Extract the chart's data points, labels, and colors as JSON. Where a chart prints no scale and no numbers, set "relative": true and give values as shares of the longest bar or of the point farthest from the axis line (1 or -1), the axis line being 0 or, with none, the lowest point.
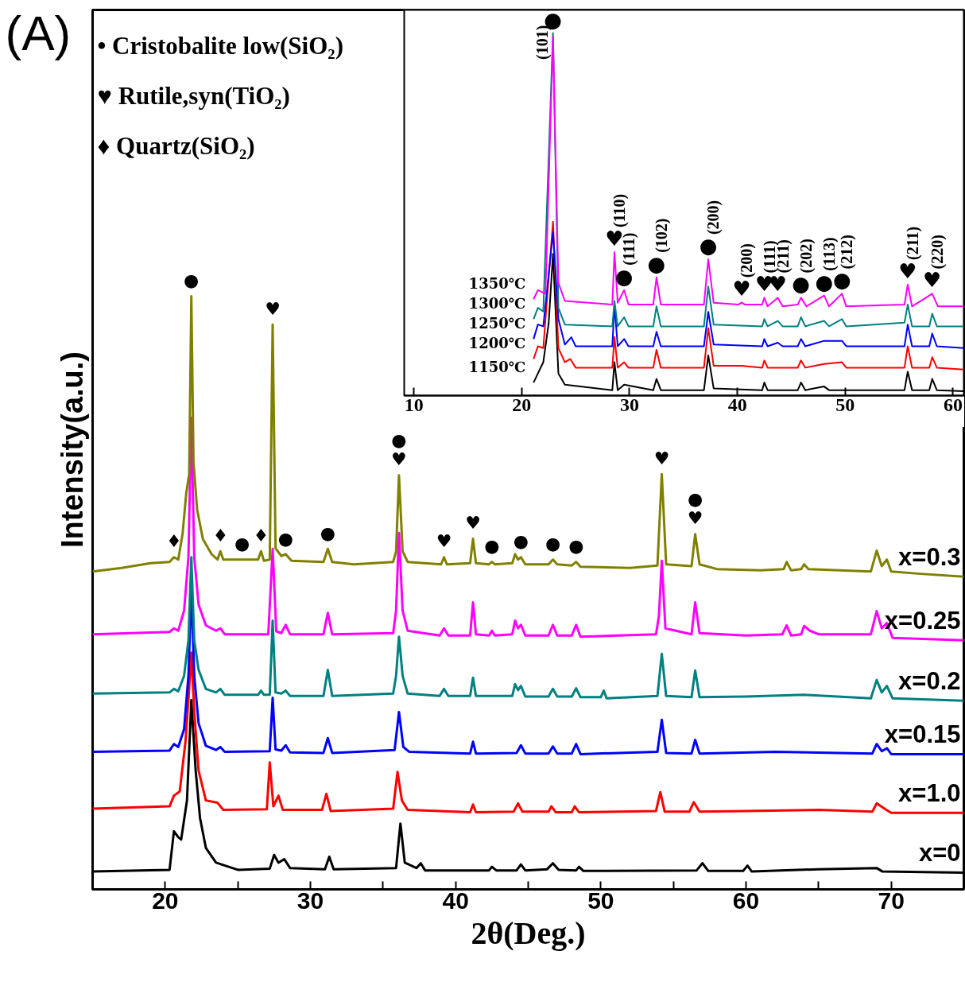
{
  "chart_data": [
    {
      "type": "line",
      "title": "(A)",
      "xlabel": "2θ(Deg.)",
      "ylabel": "Intensity(a.u.)",
      "relative": true,
      "xlim": [
        15,
        75
      ],
      "xticks": [
        20,
        {
          "value": 25,
          "label": null
        },
        30,
        {
          "value": 35,
          "label": null
        },
        40,
        {
          "value": 45,
          "label": null
        },
        50,
        {
          "value": 55,
          "label": null
        },
        60,
        {
          "value": 65,
          "label": null
        },
        70
      ],
      "annotations": [
        "• Cristobalite low(SiO₂)",
        "♥ Rutile,syn(TiO₂)",
        "♦ Quartz(SiO₂)",
        {
          "text": "●",
          "x": 21.8,
          "y": 1.0
        },
        {
          "text": "♥",
          "x": 27.4,
          "y": 0.952
        },
        {
          "text": "♦",
          "x": 20.6,
          "y": 0.56
        },
        {
          "text": "♦",
          "x": 23.8,
          "y": 0.57
        },
        {
          "text": "●",
          "x": 25.3,
          "y": 0.556
        },
        {
          "text": "♦",
          "x": 26.6,
          "y": 0.57
        },
        {
          "text": "●",
          "x": 28.3,
          "y": 0.565
        },
        {
          "text": "●",
          "x": 31.2,
          "y": 0.574
        },
        {
          "text": "♥",
          "x": 36.1,
          "y": 0.698
        },
        {
          "text": "●",
          "x": 36.1,
          "y": 0.698
        },
        {
          "text": "♥",
          "x": 39.2,
          "y": 0.56
        },
        {
          "text": "♥",
          "x": 41.2,
          "y": 0.591
        },
        {
          "text": "●",
          "x": 42.5,
          "y": 0.552
        },
        {
          "text": "●",
          "x": 44.5,
          "y": 0.56
        },
        {
          "text": "●",
          "x": 46.7,
          "y": 0.556
        },
        {
          "text": "●",
          "x": 48.3,
          "y": 0.552
        },
        {
          "text": "♥",
          "x": 54.2,
          "y": 0.7
        },
        {
          "text": "♥",
          "x": 56.5,
          "y": 0.599
        },
        {
          "text": "●",
          "x": 56.5,
          "y": 0.599
        }
      ],
      "series": [
        {
          "name": "x=0",
          "color": "#000000",
          "x": [
            15,
            20.3,
            20.6,
            20.9,
            21.1,
            21.5,
            21.8,
            22.1,
            22.4,
            22.8,
            23.5,
            25,
            27.2,
            27.5,
            27.8,
            28.2,
            28.6,
            31.0,
            31.3,
            31.6,
            35.9,
            36.2,
            36.5,
            37.3,
            37.6,
            37.9,
            42.3,
            42.5,
            42.8,
            44.2,
            44.5,
            44.8,
            46.3,
            46.7,
            47.1,
            48.3,
            48.5,
            48.8,
            56.6,
            57,
            57.4,
            59.8,
            60.1,
            60.4,
            65,
            69,
            69.4,
            75
          ],
          "values": [
            0.03,
            0.033,
            0.098,
            0.088,
            0.084,
            0.15,
            0.319,
            0.2,
            0.12,
            0.07,
            0.045,
            0.033,
            0.035,
            0.058,
            0.045,
            0.051,
            0.036,
            0.034,
            0.055,
            0.034,
            0.036,
            0.111,
            0.045,
            0.036,
            0.044,
            0.032,
            0.032,
            0.038,
            0.032,
            0.032,
            0.042,
            0.032,
            0.034,
            0.044,
            0.033,
            0.032,
            0.038,
            0.031,
            0.032,
            0.044,
            0.031,
            0.031,
            0.04,
            0.03,
            0.034,
            0.036,
            0.03,
            0.028
          ]
        },
        {
          "name": "x=1.0",
          "color": "#ff0000",
          "x": [
            15,
            20.3,
            20.6,
            21.0,
            21.4,
            21.6,
            21.8,
            22.0,
            22.3,
            22.8,
            23.6,
            24.0,
            27.0,
            27.2,
            27.45,
            27.8,
            28.1,
            30.8,
            31.1,
            31.4,
            35.7,
            36.0,
            36.3,
            36.7,
            41.0,
            41.2,
            41.4,
            44.0,
            44.3,
            44.6,
            46.4,
            46.6,
            46.9,
            48.0,
            48.2,
            48.5,
            53.8,
            54.1,
            54.4,
            56.1,
            56.4,
            56.8,
            60,
            65,
            68.7,
            69,
            69.6,
            70.0,
            75
          ],
          "values": [
            0.136,
            0.14,
            0.158,
            0.165,
            0.25,
            0.32,
            0.399,
            0.3,
            0.2,
            0.15,
            0.146,
            0.134,
            0.135,
            0.214,
            0.14,
            0.158,
            0.134,
            0.134,
            0.161,
            0.132,
            0.136,
            0.198,
            0.15,
            0.134,
            0.13,
            0.143,
            0.13,
            0.131,
            0.145,
            0.131,
            0.131,
            0.14,
            0.13,
            0.13,
            0.14,
            0.13,
            0.132,
            0.164,
            0.131,
            0.131,
            0.147,
            0.131,
            0.132,
            0.134,
            0.131,
            0.145,
            0.135,
            0.129,
            0.129
          ]
        },
        {
          "name": "x=0.15",
          "color": "#0000ff",
          "x": [
            15,
            20.3,
            20.6,
            20.9,
            21.3,
            21.6,
            21.8,
            22.0,
            22.3,
            22.8,
            23.5,
            23.8,
            24.1,
            27.2,
            27.4,
            27.6,
            28.0,
            28.3,
            28.6,
            30.9,
            31.2,
            31.5,
            35.8,
            36.1,
            36.4,
            36.8,
            41.0,
            41.2,
            41.4,
            44.2,
            44.5,
            44.8,
            46.4,
            46.7,
            47.0,
            48.0,
            48.3,
            48.6,
            53.9,
            54.2,
            54.5,
            56.25,
            56.5,
            56.8,
            62,
            68.7,
            69.0,
            69.35,
            69.7,
            70.0,
            75
          ],
          "values": [
            0.232,
            0.234,
            0.245,
            0.24,
            0.27,
            0.36,
            0.507,
            0.36,
            0.28,
            0.242,
            0.235,
            0.24,
            0.232,
            0.233,
            0.323,
            0.236,
            0.234,
            0.243,
            0.231,
            0.23,
            0.255,
            0.23,
            0.235,
            0.299,
            0.24,
            0.232,
            0.229,
            0.249,
            0.229,
            0.23,
            0.243,
            0.229,
            0.229,
            0.241,
            0.229,
            0.229,
            0.245,
            0.228,
            0.232,
            0.286,
            0.23,
            0.229,
            0.252,
            0.229,
            0.232,
            0.229,
            0.245,
            0.233,
            0.238,
            0.228,
            0.228
          ]
        },
        {
          "name": "x=0.2",
          "color": "#008080",
          "x": [
            15,
            20.3,
            20.6,
            20.9,
            21.3,
            21.6,
            21.8,
            22.0,
            22.3,
            22.8,
            23.5,
            23.8,
            24.1,
            26.4,
            26.6,
            26.8,
            27.2,
            27.4,
            27.6,
            28.0,
            28.3,
            28.6,
            30.9,
            31.2,
            31.5,
            35.7,
            35.9,
            36.1,
            36.35,
            36.7,
            38.9,
            39.2,
            39.5,
            41.0,
            41.2,
            41.4,
            43.9,
            44.1,
            44.3,
            44.5,
            44.8,
            46.4,
            46.7,
            47.0,
            48.0,
            48.3,
            48.6,
            50.0,
            50.2,
            50.4,
            53.9,
            54.2,
            54.5,
            56.25,
            56.5,
            56.8,
            60,
            64,
            68.6,
            69.0,
            69.35,
            69.7,
            70.1,
            75
          ],
          "values": [
            0.33,
            0.332,
            0.338,
            0.334,
            0.36,
            0.42,
            0.56,
            0.42,
            0.37,
            0.338,
            0.332,
            0.338,
            0.328,
            0.328,
            0.335,
            0.328,
            0.328,
            0.453,
            0.332,
            0.33,
            0.335,
            0.326,
            0.326,
            0.37,
            0.326,
            0.33,
            0.36,
            0.426,
            0.36,
            0.33,
            0.326,
            0.338,
            0.326,
            0.326,
            0.357,
            0.326,
            0.326,
            0.346,
            0.336,
            0.343,
            0.325,
            0.325,
            0.338,
            0.325,
            0.325,
            0.339,
            0.324,
            0.324,
            0.335,
            0.322,
            0.326,
            0.397,
            0.326,
            0.324,
            0.369,
            0.324,
            0.325,
            0.328,
            0.322,
            0.353,
            0.332,
            0.343,
            0.322,
            0.318
          ]
        },
        {
          "name": "x=0.25",
          "color": "#ff00ff",
          "x": [
            15,
            20.3,
            20.6,
            20.9,
            21.3,
            21.6,
            21.8,
            22.0,
            22.3,
            22.8,
            23.5,
            23.8,
            24.1,
            27.1,
            27.4,
            27.65,
            28.0,
            28.3,
            28.6,
            30.9,
            31.2,
            31.5,
            35.7,
            35.9,
            36.1,
            36.35,
            36.7,
            38.9,
            39.2,
            39.5,
            41.0,
            41.2,
            41.4,
            42.3,
            42.5,
            42.7,
            43.9,
            44.1,
            44.3,
            44.5,
            44.8,
            46.4,
            46.7,
            47.0,
            48.0,
            48.3,
            48.6,
            53.8,
            54.0,
            54.2,
            54.45,
            56.25,
            56.5,
            56.8,
            60,
            62.5,
            62.8,
            63.1,
            63.8,
            64.0,
            64.4,
            65,
            68.6,
            69.0,
            69.35,
            69.7,
            70.1,
            75
          ],
          "values": [
            0.43,
            0.434,
            0.44,
            0.436,
            0.47,
            0.56,
            0.795,
            0.56,
            0.48,
            0.445,
            0.436,
            0.44,
            0.43,
            0.43,
            0.574,
            0.435,
            0.432,
            0.446,
            0.43,
            0.43,
            0.466,
            0.43,
            0.432,
            0.47,
            0.601,
            0.47,
            0.436,
            0.428,
            0.44,
            0.428,
            0.428,
            0.484,
            0.43,
            0.428,
            0.436,
            0.428,
            0.43,
            0.453,
            0.44,
            0.446,
            0.428,
            0.428,
            0.446,
            0.428,
            0.428,
            0.446,
            0.426,
            0.43,
            0.46,
            0.554,
            0.44,
            0.43,
            0.484,
            0.432,
            0.428,
            0.43,
            0.445,
            0.428,
            0.43,
            0.444,
            0.436,
            0.43,
            0.43,
            0.469,
            0.44,
            0.449,
            0.424,
            0.42
          ]
        },
        {
          "name": "x=0.3",
          "color": "#808000",
          "x": [
            15,
            17,
            19,
            20.3,
            20.6,
            20.9,
            21.2,
            21.45,
            21.65,
            21.8,
            21.95,
            22.2,
            22.6,
            23.2,
            23.6,
            23.8,
            24.0,
            25.0,
            25.3,
            26.4,
            26.6,
            26.8,
            27.2,
            27.4,
            27.6,
            28.0,
            28.3,
            28.7,
            30.9,
            31.2,
            31.5,
            33,
            35.7,
            35.9,
            36.1,
            36.35,
            36.7,
            39.0,
            39.2,
            39.4,
            41.0,
            41.2,
            41.4,
            42.3,
            42.5,
            42.7,
            43.9,
            44.1,
            44.3,
            44.5,
            44.8,
            46.4,
            46.7,
            47.0,
            48.0,
            48.3,
            48.6,
            52,
            53.9,
            54.2,
            54.5,
            56.25,
            56.5,
            56.8,
            58,
            61,
            62.6,
            62.8,
            63.1,
            63.8,
            64.0,
            64.3,
            68.6,
            69.0,
            69.35,
            69.7,
            70.0,
            72,
            75
          ],
          "values": [
            0.536,
            0.542,
            0.55,
            0.552,
            0.56,
            0.556,
            0.6,
            0.668,
            0.7,
            1.0,
            0.72,
            0.64,
            0.59,
            0.565,
            0.556,
            0.57,
            0.556,
            0.556,
            0.556,
            0.556,
            0.57,
            0.554,
            0.556,
            0.952,
            0.575,
            0.562,
            0.565,
            0.554,
            0.552,
            0.574,
            0.552,
            0.548,
            0.552,
            0.57,
            0.698,
            0.57,
            0.552,
            0.548,
            0.56,
            0.548,
            0.55,
            0.591,
            0.55,
            0.548,
            0.552,
            0.548,
            0.55,
            0.565,
            0.556,
            0.56,
            0.548,
            0.548,
            0.556,
            0.548,
            0.546,
            0.552,
            0.544,
            0.542,
            0.546,
            0.7,
            0.548,
            0.545,
            0.599,
            0.548,
            0.54,
            0.538,
            0.54,
            0.552,
            0.538,
            0.54,
            0.548,
            0.54,
            0.536,
            0.571,
            0.545,
            0.556,
            0.536,
            0.532,
            0.527
          ]
        }
      ]
    },
    {
      "type": "line",
      "relative": true,
      "xlim": [
        9.1,
        61
      ],
      "xticks": [
        10,
        20,
        30,
        40,
        50,
        60
      ],
      "annotations": [
        {
          "text": "●",
          "x": 22.9,
          "y": 1.0
        },
        {
          "text": "(101)",
          "x": 22.9,
          "y": 1.0
        },
        {
          "text": "♥",
          "x": 28.6,
          "y": 0.396
        },
        {
          "text": "(110)",
          "x": 28.6,
          "y": 0.396
        },
        {
          "text": "●",
          "x": 29.5,
          "y": 0.291
        },
        {
          "text": "(111)",
          "x": 29.5,
          "y": 0.291
        },
        {
          "text": "●",
          "x": 32.5,
          "y": 0.326
        },
        {
          "text": "(102)",
          "x": 32.5,
          "y": 0.326
        },
        {
          "text": "●",
          "x": 37.3,
          "y": 0.376
        },
        {
          "text": "(200)",
          "x": 37.3,
          "y": 0.376
        },
        {
          "text": "♥",
          "x": 40.4,
          "y": 0.257
        },
        {
          "text": "(200)",
          "x": 40.4,
          "y": 0.257
        },
        {
          "text": "♥",
          "x": 42.5,
          "y": 0.27
        },
        {
          "text": "(111)",
          "x": 42.5,
          "y": 0.27
        },
        {
          "text": "♥",
          "x": 43.75,
          "y": 0.27
        },
        {
          "text": "(211)",
          "x": 43.75,
          "y": 0.27
        },
        {
          "text": "●",
          "x": 45.9,
          "y": 0.27
        },
        {
          "text": "(202)",
          "x": 45.9,
          "y": 0.27
        },
        {
          "text": "●",
          "x": 48.05,
          "y": 0.276
        },
        {
          "text": "(113)",
          "x": 48.05,
          "y": 0.276
        },
        {
          "text": "●",
          "x": 49.7,
          "y": 0.281
        },
        {
          "text": "(212)",
          "x": 49.7,
          "y": 0.281
        },
        {
          "text": "♥",
          "x": 55.8,
          "y": 0.306
        },
        {
          "text": "(211)",
          "x": 55.8,
          "y": 0.306
        },
        {
          "text": "♥",
          "x": 58.07,
          "y": 0.281
        },
        {
          "text": "(220)",
          "x": 58.07,
          "y": 0.281
        }
      ],
      "series": [
        {
          "name": "1150℃",
          "color": "#000000",
          "x": [
            21.1,
            21.5,
            22.0,
            22.5,
            22.9,
            23.4,
            24,
            28.4,
            28.6,
            28.9,
            29.5,
            32.2,
            32.5,
            32.9,
            36.9,
            37.3,
            37.8,
            42.3,
            42.5,
            42.8,
            45.6,
            45.9,
            46.3,
            48.05,
            48.5,
            55.5,
            55.8,
            56.2,
            57.8,
            58.07,
            58.5,
            61
          ],
          "values": [
            0.036,
            0.061,
            0.092,
            0.2,
            0.391,
            0.061,
            0.03,
            0.015,
            0.092,
            0.015,
            0.03,
            0.015,
            0.046,
            0.015,
            0.015,
            0.111,
            0.02,
            0.015,
            0.036,
            0.015,
            0.015,
            0.036,
            0.015,
            0.025,
            0.015,
            0.015,
            0.066,
            0.015,
            0.015,
            0.046,
            0.015,
            0.012
          ]
        },
        {
          "name": "1200℃",
          "color": "#ff0000",
          "x": [
            21.1,
            21.5,
            22.0,
            22.9,
            23.4,
            24,
            24.5,
            25,
            28.4,
            28.6,
            28.9,
            29.5,
            29.9,
            32.2,
            32.5,
            32.9,
            36.9,
            37.3,
            37.8,
            40.4,
            42.3,
            42.5,
            42.8,
            45.6,
            45.9,
            46.3,
            48.05,
            49.7,
            50.1,
            55.5,
            55.8,
            56.2,
            57.8,
            58.07,
            58.5,
            61
          ],
          "values": [
            0.101,
            0.136,
            0.131,
            0.48,
            0.131,
            0.092,
            0.101,
            0.077,
            0.077,
            0.161,
            0.077,
            0.092,
            0.077,
            0.077,
            0.126,
            0.077,
            0.077,
            0.186,
            0.082,
            0.082,
            0.077,
            0.097,
            0.077,
            0.077,
            0.097,
            0.077,
            0.087,
            0.092,
            0.077,
            0.077,
            0.136,
            0.077,
            0.077,
            0.106,
            0.077,
            0.072
          ]
        },
        {
          "name": "1250℃",
          "color": "#0000ff",
          "x": [
            21.1,
            21.5,
            22.0,
            22.9,
            23.4,
            24,
            24.6,
            25,
            28.4,
            28.6,
            28.9,
            29.5,
            29.9,
            32.2,
            32.5,
            32.9,
            36.9,
            37.3,
            37.8,
            42.3,
            42.5,
            42.8,
            43.75,
            44.2,
            45.6,
            45.9,
            46.3,
            48.05,
            49.7,
            50.1,
            55.5,
            55.8,
            56.2,
            57.8,
            58.07,
            58.5,
            61
          ],
          "values": [
            0.156,
            0.196,
            0.191,
            0.451,
            0.211,
            0.141,
            0.161,
            0.136,
            0.136,
            0.25,
            0.136,
            0.156,
            0.136,
            0.136,
            0.176,
            0.136,
            0.136,
            0.231,
            0.141,
            0.136,
            0.156,
            0.136,
            0.146,
            0.136,
            0.136,
            0.156,
            0.136,
            0.151,
            0.151,
            0.136,
            0.136,
            0.196,
            0.136,
            0.136,
            0.171,
            0.136,
            0.131
          ]
        },
        {
          "name": "1300℃",
          "color": "#008080",
          "x": [
            21.1,
            21.5,
            22.0,
            22.9,
            23.4,
            24,
            28.4,
            28.6,
            28.9,
            29.5,
            29.9,
            32.2,
            32.5,
            32.9,
            36.9,
            37.3,
            37.8,
            42.3,
            42.5,
            42.8,
            43.75,
            44.2,
            45.6,
            45.9,
            46.3,
            48.05,
            48.5,
            49.7,
            50.1,
            55.5,
            55.8,
            56.2,
            57.8,
            58.07,
            58.5,
            61
          ],
          "values": [
            0.211,
            0.242,
            0.232,
            1.0,
            0.242,
            0.196,
            0.191,
            0.261,
            0.191,
            0.216,
            0.191,
            0.191,
            0.246,
            0.191,
            0.191,
            0.301,
            0.196,
            0.191,
            0.211,
            0.191,
            0.206,
            0.191,
            0.191,
            0.216,
            0.191,
            0.206,
            0.191,
            0.211,
            0.191,
            0.201,
            0.251,
            0.191,
            0.191,
            0.226,
            0.191,
            0.191
          ]
        },
        {
          "name": "1350℃",
          "color": "#ff00ff",
          "x": [
            21.1,
            21.5,
            22.2,
            22.9,
            23.4,
            24,
            28.4,
            28.6,
            28.9,
            29.5,
            29.9,
            32.2,
            32.5,
            32.9,
            36.9,
            37.3,
            37.8,
            40.1,
            40.4,
            40.7,
            42.3,
            42.5,
            42.8,
            43.75,
            44.2,
            45.6,
            45.9,
            46.4,
            48.05,
            48.5,
            49.7,
            50.1,
            55.5,
            55.8,
            56.2,
            58.07,
            58.6,
            61
          ],
          "values": [
            0.266,
            0.291,
            0.281,
            0.99,
            0.311,
            0.261,
            0.251,
            0.396,
            0.256,
            0.291,
            0.251,
            0.251,
            0.326,
            0.251,
            0.251,
            0.376,
            0.256,
            0.251,
            0.257,
            0.251,
            0.251,
            0.27,
            0.246,
            0.27,
            0.246,
            0.251,
            0.27,
            0.246,
            0.276,
            0.246,
            0.281,
            0.246,
            0.251,
            0.306,
            0.246,
            0.281,
            0.246,
            0.246
          ]
        }
      ]
    }
  ]
}
